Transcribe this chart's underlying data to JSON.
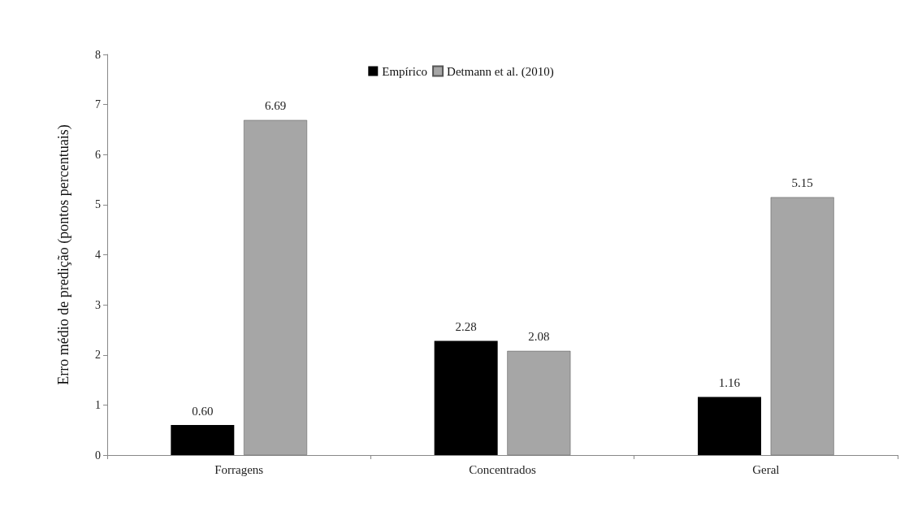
{
  "chart_data": {
    "type": "bar",
    "ylabel": "Erro médio de predição (pontos percentuais)",
    "categories": [
      "Forragens",
      "Concentrados",
      "Geral"
    ],
    "series": [
      {
        "name": "Empírico",
        "color": "#000000",
        "values": [
          0.6,
          2.28,
          1.16
        ],
        "value_labels": [
          "0.60",
          "2.28",
          "1.16"
        ]
      },
      {
        "name": "Detmann et al. (2010)",
        "color": "#a6a6a6",
        "values": [
          6.69,
          2.08,
          5.15
        ],
        "value_labels": [
          "6.69",
          "2.08",
          "5.15"
        ]
      }
    ],
    "ylim": [
      0,
      8
    ],
    "yticks": [
      0,
      1,
      2,
      3,
      4,
      5,
      6,
      7,
      8
    ],
    "grid": false,
    "legend": "top"
  }
}
